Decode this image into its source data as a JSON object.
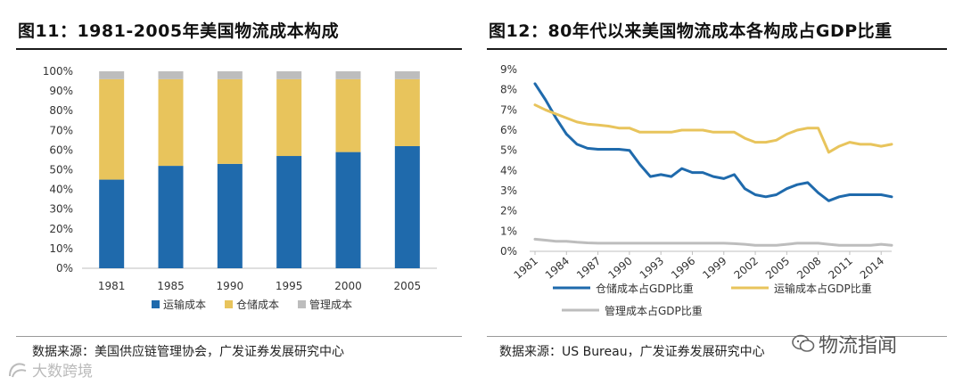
{
  "chart_data": [
    {
      "type": "bar",
      "stacked": true,
      "title": "图11：1981-2005年美国物流成本构成",
      "categories": [
        "1981",
        "1985",
        "1990",
        "1995",
        "2000",
        "2005"
      ],
      "series": [
        {
          "name": "运输成本",
          "color": "#1f6aac",
          "values": [
            45,
            52,
            53,
            57,
            59,
            62
          ]
        },
        {
          "name": "仓储成本",
          "color": "#e8c45c",
          "values": [
            51,
            44,
            43,
            39,
            37,
            34
          ]
        },
        {
          "name": "管理成本",
          "color": "#bdbdbd",
          "values": [
            4,
            4,
            4,
            4,
            4,
            4
          ]
        }
      ],
      "y_ticks": [
        "0%",
        "10%",
        "20%",
        "30%",
        "40%",
        "50%",
        "60%",
        "70%",
        "80%",
        "90%",
        "100%"
      ],
      "ylim": [
        0,
        100
      ],
      "legend_position": "bottom",
      "source": "数据来源：美国供应链管理协会，广发证券发展研究中心"
    },
    {
      "type": "line",
      "title": "图12：80年代以来美国物流成本各构成占GDP比重",
      "x": [
        1981,
        1982,
        1983,
        1984,
        1985,
        1986,
        1987,
        1988,
        1989,
        1990,
        1991,
        1992,
        1993,
        1994,
        1995,
        1996,
        1997,
        1998,
        1999,
        2000,
        2001,
        2002,
        2003,
        2004,
        2005,
        2006,
        2007,
        2008,
        2009,
        2010,
        2011,
        2012,
        2013,
        2014,
        2015
      ],
      "x_ticks": [
        "1981",
        "1984",
        "1987",
        "1990",
        "1993",
        "1996",
        "1999",
        "2002",
        "2005",
        "2008",
        "2011",
        "2014"
      ],
      "y_ticks": [
        "0%",
        "1%",
        "2%",
        "3%",
        "4%",
        "5%",
        "6%",
        "7%",
        "8%",
        "9%"
      ],
      "ylim": [
        0,
        9
      ],
      "xlim": [
        1981,
        2015
      ],
      "series": [
        {
          "name": "仓储成本占GDP比重",
          "color": "#1f6aac",
          "values": [
            8.3,
            7.5,
            6.6,
            5.8,
            5.3,
            5.1,
            5.05,
            5.05,
            5.05,
            5.0,
            4.3,
            3.7,
            3.8,
            3.7,
            4.1,
            3.9,
            3.9,
            3.7,
            3.6,
            3.8,
            3.1,
            2.8,
            2.7,
            2.8,
            3.1,
            3.3,
            3.4,
            2.9,
            2.5,
            2.7,
            2.8,
            2.8,
            2.8,
            2.8,
            2.7
          ]
        },
        {
          "name": "运输成本占GDP比重",
          "color": "#e8c45c",
          "values": [
            7.25,
            7.0,
            6.8,
            6.6,
            6.4,
            6.3,
            6.25,
            6.2,
            6.1,
            6.1,
            5.9,
            5.9,
            5.9,
            5.9,
            6.0,
            6.0,
            6.0,
            5.9,
            5.9,
            5.9,
            5.6,
            5.4,
            5.4,
            5.5,
            5.8,
            6.0,
            6.1,
            6.1,
            4.9,
            5.2,
            5.4,
            5.3,
            5.3,
            5.2,
            5.3
          ]
        },
        {
          "name": "管理成本占GDP比重",
          "color": "#bdbdbd",
          "values": [
            0.6,
            0.55,
            0.5,
            0.5,
            0.45,
            0.42,
            0.4,
            0.4,
            0.4,
            0.4,
            0.4,
            0.4,
            0.4,
            0.4,
            0.4,
            0.4,
            0.4,
            0.4,
            0.4,
            0.38,
            0.35,
            0.3,
            0.3,
            0.3,
            0.35,
            0.4,
            0.4,
            0.4,
            0.35,
            0.3,
            0.3,
            0.3,
            0.3,
            0.35,
            0.3
          ]
        }
      ],
      "legend_position": "bottom",
      "source": "数据来源：US Bureau，广发证券发展研究中心"
    }
  ],
  "watermarks": {
    "right_text": "物流指闻",
    "left_text": "大数跨境"
  }
}
